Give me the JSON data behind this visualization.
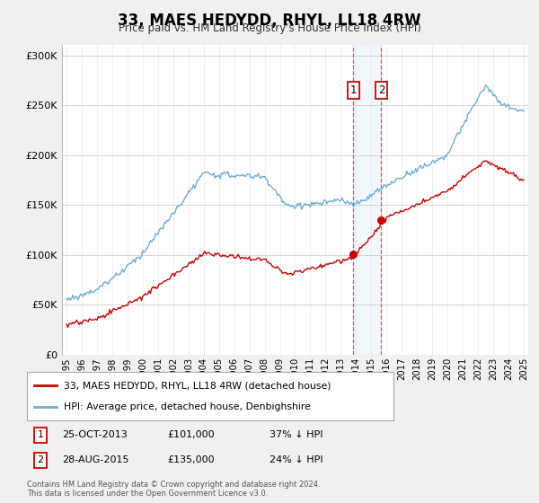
{
  "title": "33, MAES HEDYDD, RHYL, LL18 4RW",
  "subtitle": "Price paid vs. HM Land Registry's House Price Index (HPI)",
  "legend_line1": "33, MAES HEDYDD, RHYL, LL18 4RW (detached house)",
  "legend_line2": "HPI: Average price, detached house, Denbighshire",
  "annotation1": {
    "label": "1",
    "date": "25-OCT-2013",
    "price": "£101,000",
    "pct": "37% ↓ HPI",
    "x_year": 2013.82
  },
  "annotation2": {
    "label": "2",
    "date": "28-AUG-2015",
    "price": "£135,000",
    "pct": "24% ↓ HPI",
    "x_year": 2015.66
  },
  "copyright": "Contains HM Land Registry data © Crown copyright and database right 2024.\nThis data is licensed under the Open Government Licence v3.0.",
  "hpi_color": "#6baed6",
  "sale_color": "#cc0000",
  "bg_color": "#f0f0f0",
  "plot_bg": "#ffffff",
  "ylim": [
    0,
    310000
  ],
  "xlim_start": 1994.7,
  "xlim_end": 2025.3
}
